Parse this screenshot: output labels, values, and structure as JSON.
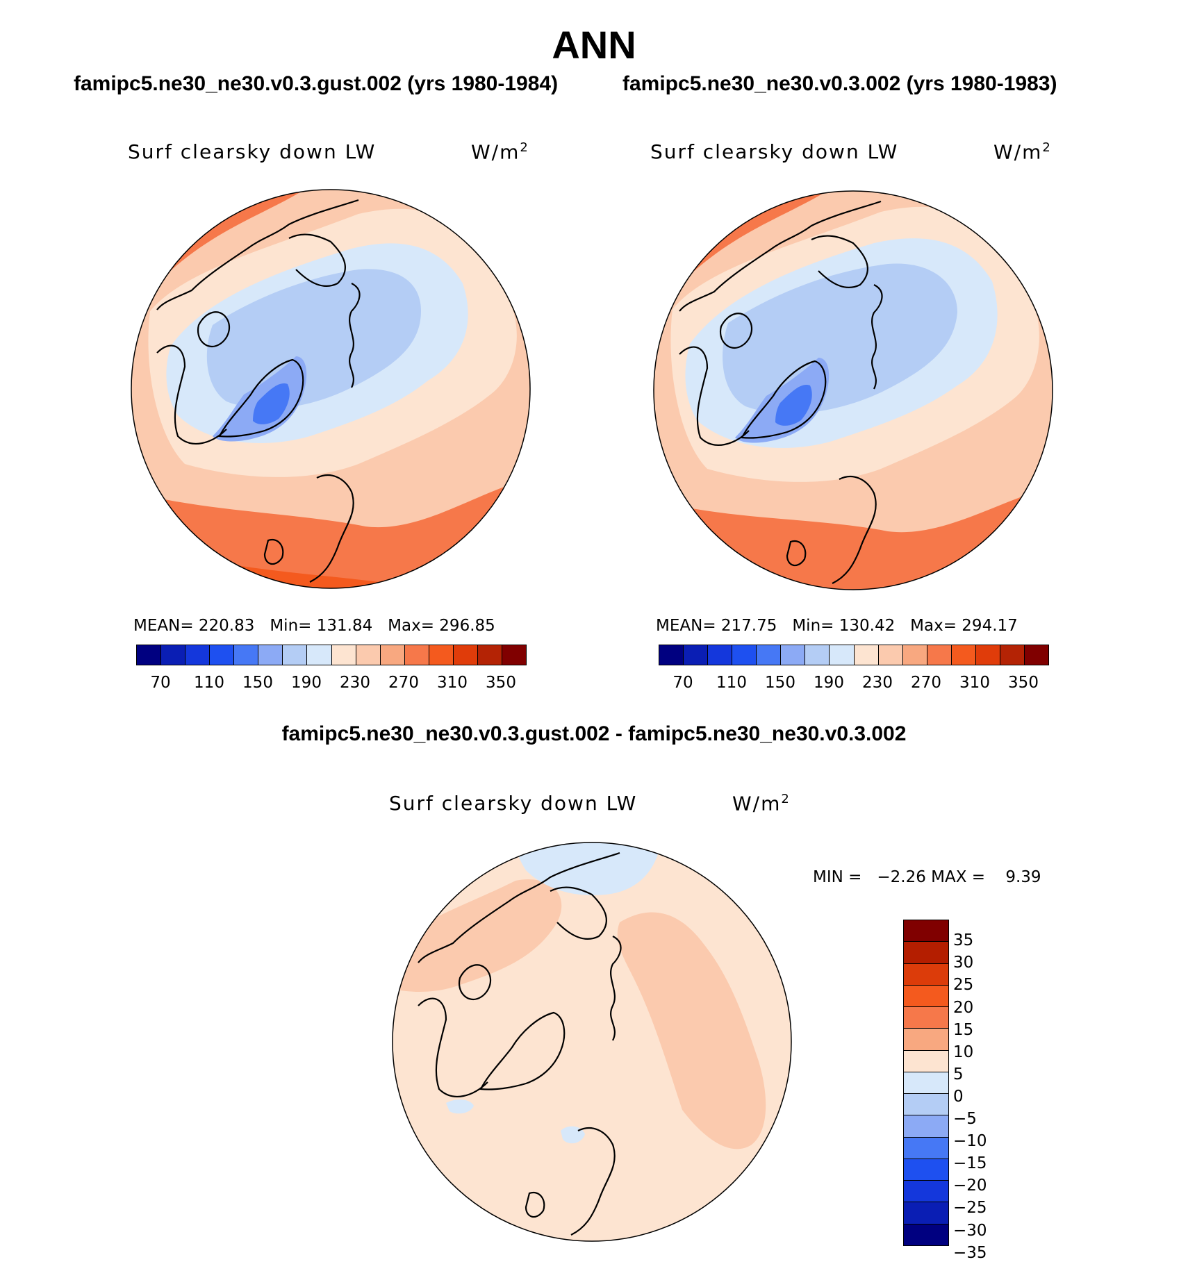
{
  "figure": {
    "title": "ANN",
    "left_case": "famipc5.ne30_ne30.v0.3.gust.002 (yrs 1980-1984)",
    "right_case": "famipc5.ne30_ne30.v0.3.002 (yrs 1980-1983)",
    "diff_title": "famipc5.ne30_ne30.v0.3.gust.002 - famipc5.ne30_ne30.v0.3.002"
  },
  "panels": {
    "left": {
      "field": "Surf clearsky down LW",
      "units": "W/m",
      "units_sup": "2",
      "mean_label": "MEAN=",
      "mean": "220.83",
      "min_label": "Min=",
      "min": "131.84",
      "max_label": "Max=",
      "max": "296.85"
    },
    "right": {
      "field": "Surf clearsky down LW",
      "units": "W/m",
      "units_sup": "2",
      "mean_label": "MEAN=",
      "mean": "217.75",
      "min_label": "Min=",
      "min": "130.42",
      "max_label": "Max=",
      "max": "294.17"
    },
    "diff": {
      "field": "Surf clearsky down LW",
      "units": "W/m",
      "units_sup": "2",
      "min_label": "MIN =",
      "min": "−2.26",
      "max_label": "MAX =",
      "max": "9.39"
    }
  },
  "colorbars": {
    "abs_colors": [
      "#000080",
      "#0a1eb4",
      "#1437dc",
      "#1e50f0",
      "#4678f5",
      "#8caaf5",
      "#b4cdf5",
      "#d7e8fa",
      "#fde4d1",
      "#fbcaae",
      "#f8a880",
      "#f6784a",
      "#f45a1e",
      "#e03c0a",
      "#b42305",
      "#800000"
    ],
    "abs_ticks": [
      "70",
      "110",
      "150",
      "190",
      "230",
      "270",
      "310",
      "350"
    ],
    "diff_colors": [
      "#800000",
      "#b41e00",
      "#dc3c0a",
      "#f45a1e",
      "#f6784a",
      "#f8a880",
      "#fde4d1",
      "#d7e8fa",
      "#b4cdf5",
      "#8caaf5",
      "#4678f5",
      "#1e50f0",
      "#1437dc",
      "#0a1eb4",
      "#000080"
    ],
    "diff_ticks": [
      "35",
      "30",
      "25",
      "20",
      "15",
      "10",
      "5",
      "0",
      "−5",
      "−10",
      "−15",
      "−20",
      "−25",
      "−30",
      "−35"
    ]
  },
  "map_colors": {
    "c130": "#4678f5",
    "c150": "#8caaf5",
    "c170": "#b4cdf5",
    "c190": "#d7e8fa",
    "c230": "#fde4d1",
    "c250": "#fbcaae",
    "c270": "#f8a880",
    "c290": "#f6784a",
    "c310": "#f45a1e",
    "coast": "#000000",
    "d_pos0": "#fde4d1",
    "d_pos5": "#fbcaae",
    "d_neg": "#d7e8fa"
  }
}
